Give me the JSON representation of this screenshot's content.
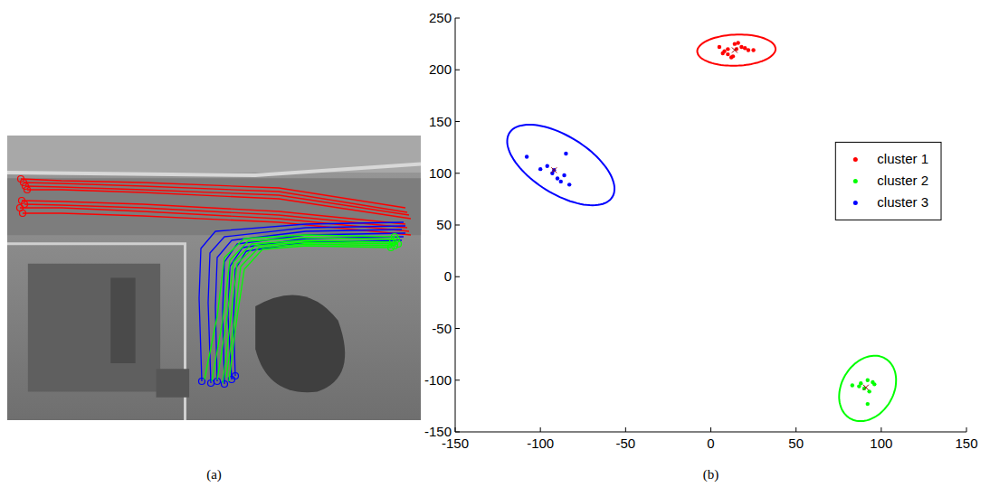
{
  "chart_data": [
    {
      "type": "trajectories",
      "title": "(a)",
      "tick_labels": false,
      "marker": "circle",
      "xlim": [
        0,
        457
      ],
      "ylim": [
        315,
        0
      ],
      "series": [
        {
          "color": "#ff0000",
          "x": [
            15,
            60,
            150,
            300,
            440
          ],
          "values": [
            48,
            50,
            52,
            58,
            80
          ]
        },
        {
          "color": "#ff0000",
          "x": [
            18,
            60,
            150,
            300,
            442
          ],
          "values": [
            52,
            53,
            56,
            62,
            85
          ]
        },
        {
          "color": "#ff0000",
          "x": [
            20,
            60,
            150,
            300,
            444
          ],
          "values": [
            56,
            57,
            60,
            66,
            88
          ]
        },
        {
          "color": "#ff0000",
          "x": [
            22,
            60,
            150,
            300,
            446
          ],
          "values": [
            60,
            60,
            63,
            70,
            92
          ]
        },
        {
          "color": "#ff0000",
          "x": [
            16,
            60,
            150,
            300,
            440
          ],
          "values": [
            72,
            73,
            76,
            84,
            98
          ]
        },
        {
          "color": "#ff0000",
          "x": [
            19,
            60,
            150,
            300,
            442
          ],
          "values": [
            76,
            77,
            80,
            88,
            102
          ]
        },
        {
          "color": "#ff0000",
          "x": [
            14,
            60,
            150,
            300,
            444
          ],
          "values": [
            80,
            80,
            84,
            92,
            106
          ]
        },
        {
          "color": "#ff0000",
          "x": [
            17,
            60,
            150,
            300,
            446
          ],
          "values": [
            86,
            86,
            89,
            96,
            110
          ]
        },
        {
          "color": "#0000ff",
          "x": [
            215,
            212,
            214,
            230,
            330,
            438
          ],
          "values": [
            272,
            180,
            125,
            106,
            98,
            96
          ]
        },
        {
          "color": "#0000ff",
          "x": [
            225,
            222,
            224,
            240,
            330,
            440
          ],
          "values": [
            274,
            185,
            130,
            112,
            102,
            100
          ]
        },
        {
          "color": "#0000ff",
          "x": [
            232,
            230,
            232,
            248,
            330,
            436
          ],
          "values": [
            272,
            190,
            135,
            116,
            106,
            104
          ]
        },
        {
          "color": "#0000ff",
          "x": [
            240,
            238,
            240,
            254,
            330,
            440
          ],
          "values": [
            275,
            195,
            140,
            120,
            110,
            108
          ]
        },
        {
          "color": "#0000ff",
          "x": [
            248,
            244,
            246,
            260,
            330,
            438
          ],
          "values": [
            270,
            200,
            145,
            124,
            114,
            112
          ]
        },
        {
          "color": "#0000ff",
          "x": [
            252,
            250,
            252,
            264,
            330,
            436
          ],
          "values": [
            266,
            205,
            148,
            128,
            118,
            116
          ]
        },
        {
          "color": "#00ff00",
          "x": [
            428,
            330,
            262,
            240,
            232,
            218
          ],
          "values": [
            112,
            110,
            114,
            135,
            200,
            270
          ]
        },
        {
          "color": "#00ff00",
          "x": [
            430,
            330,
            266,
            246,
            238,
            226
          ],
          "values": [
            115,
            113,
            117,
            138,
            205,
            272
          ]
        },
        {
          "color": "#00ff00",
          "x": [
            426,
            330,
            270,
            250,
            242,
            232
          ],
          "values": [
            118,
            116,
            120,
            140,
            208,
            270
          ]
        },
        {
          "color": "#00ff00",
          "x": [
            432,
            330,
            274,
            254,
            246,
            238
          ],
          "values": [
            120,
            118,
            122,
            142,
            210,
            274
          ]
        },
        {
          "color": "#00ff00",
          "x": [
            428,
            330,
            278,
            258,
            250,
            242
          ],
          "values": [
            122,
            120,
            124,
            145,
            212,
            268
          ]
        },
        {
          "color": "#00ff00",
          "x": [
            424,
            330,
            282,
            262,
            252,
            245
          ],
          "values": [
            124,
            122,
            126,
            148,
            215,
            272
          ]
        }
      ]
    },
    {
      "type": "scatter",
      "title": "(b)",
      "legend": "right",
      "marker": "dot",
      "xlim": [
        -150,
        150
      ],
      "ylim": [
        -150,
        250
      ],
      "xticks": [
        -150,
        -100,
        -50,
        0,
        50,
        100,
        150
      ],
      "yticks": [
        -150,
        -100,
        -50,
        0,
        50,
        100,
        150,
        200,
        250
      ],
      "series": [
        {
          "name": "cluster 1",
          "color": "#ff0000",
          "x": [
            5,
            8,
            10,
            12,
            14,
            15,
            18,
            20,
            22,
            10,
            7,
            25,
            13,
            16
          ],
          "values": [
            222,
            218,
            215,
            212,
            225,
            220,
            222,
            221,
            219,
            220,
            216,
            219,
            213,
            226
          ],
          "center": [
            14,
            219
          ],
          "ellipse": {
            "cx": 15,
            "cy": 219,
            "a": 23,
            "b": 15,
            "angle": 5
          }
        },
        {
          "name": "cluster 2",
          "color": "#00ff00",
          "x": [
            83,
            88,
            92,
            95,
            90,
            93,
            96,
            92,
            87
          ],
          "values": [
            -105,
            -103,
            -100,
            -102,
            -108,
            -111,
            -104,
            -123,
            -106
          ],
          "center": [
            91,
            -107
          ],
          "ellipse": {
            "cx": 92,
            "cy": -108,
            "a": 32,
            "b": 16,
            "angle": 80
          }
        },
        {
          "name": "cluster 3",
          "color": "#0000ff",
          "x": [
            -108,
            -100,
            -96,
            -93,
            -90,
            -88,
            -86,
            -85,
            -83,
            -92
          ],
          "values": [
            116,
            104,
            107,
            100,
            95,
            92,
            98,
            119,
            89,
            103
          ],
          "center": [
            -92,
            103
          ],
          "ellipse": {
            "cx": -88,
            "cy": 108,
            "a": 45,
            "b": 22,
            "angle": -55
          }
        }
      ]
    }
  ]
}
